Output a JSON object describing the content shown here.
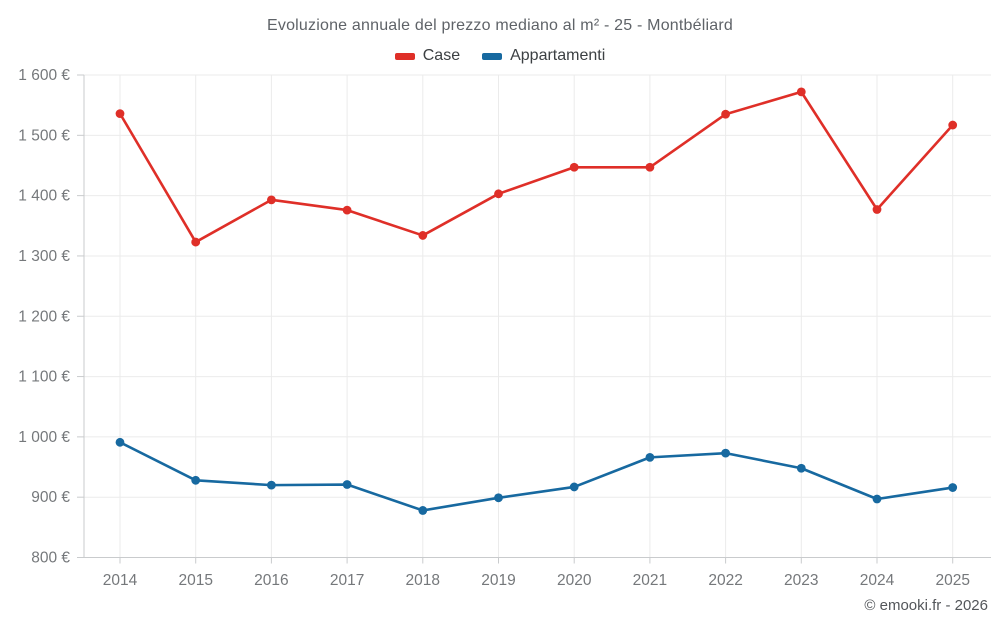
{
  "footer": "© emooki.fr - 2026",
  "chart_data": {
    "type": "line",
    "title": "Evoluzione annuale del prezzo mediano al m² - 25 - Montbéliard",
    "categories": [
      "2014",
      "2015",
      "2016",
      "2017",
      "2018",
      "2019",
      "2020",
      "2021",
      "2022",
      "2023",
      "2024",
      "2025"
    ],
    "series": [
      {
        "name": "Case",
        "color": "#df2f28",
        "values": [
          1536,
          1323,
          1393,
          1376,
          1334,
          1403,
          1447,
          1447,
          1535,
          1572,
          1377,
          1517
        ]
      },
      {
        "name": "Appartamenti",
        "color": "#1769a0",
        "values": [
          991,
          928,
          920,
          921,
          878,
          899,
          917,
          966,
          973,
          948,
          897,
          916
        ]
      }
    ],
    "ylim": [
      800,
      1600
    ],
    "y_tick_step": 100,
    "y_tick_labels": [
      "800 €",
      "900 €",
      "1 000 €",
      "1 100 €",
      "1 200 €",
      "1 300 €",
      "1 400 €",
      "1 500 €",
      "1 600 €"
    ],
    "grid": true,
    "legend_position": "top",
    "axis_color": "#c9cbcd",
    "grid_color": "#ebebeb",
    "tick_label_color": "#75787b"
  }
}
